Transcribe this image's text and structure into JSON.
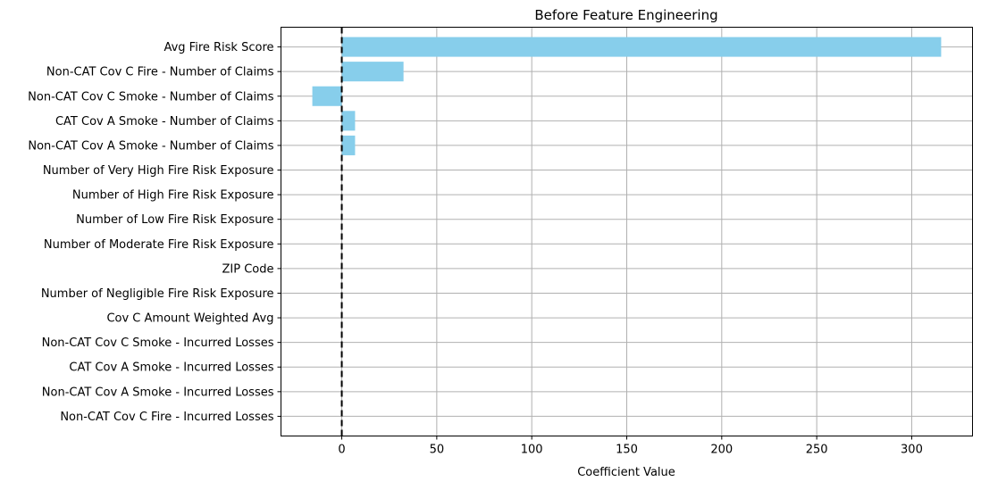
{
  "chart_data": {
    "type": "bar",
    "orientation": "horizontal",
    "title": "Before Feature Engineering",
    "xlabel": "Coefficient Value",
    "ylabel": "",
    "xlim": [
      -32,
      332
    ],
    "xticks": [
      0,
      50,
      100,
      150,
      200,
      250,
      300
    ],
    "grid": true,
    "reference_line": {
      "x": 0,
      "style": "dashed",
      "color": "#000000"
    },
    "bar_color": "#87CEEB",
    "categories": [
      "Avg Fire Risk Score",
      "Non-CAT Cov C Fire - Number of Claims",
      "Non-CAT Cov C Smoke - Number of Claims",
      "CAT Cov A Smoke - Number of Claims",
      "Non-CAT Cov A Smoke - Number of Claims",
      "Number of Very High Fire Risk Exposure",
      "Number of High Fire Risk Exposure",
      "Number of Low Fire Risk Exposure",
      "Number of Moderate Fire Risk Exposure",
      "ZIP Code",
      "Number of Negligible Fire Risk Exposure",
      "Cov C Amount Weighted Avg",
      "Non-CAT Cov C Smoke - Incurred Losses",
      "CAT Cov A Smoke - Incurred Losses",
      "Non-CAT Cov A Smoke - Incurred Losses",
      "Non-CAT Cov C Fire - Incurred Losses"
    ],
    "values": [
      315.5,
      32.5,
      -15.5,
      7.0,
      7.0,
      0,
      0,
      0,
      0,
      0,
      0,
      0,
      0,
      0,
      0,
      0
    ]
  }
}
